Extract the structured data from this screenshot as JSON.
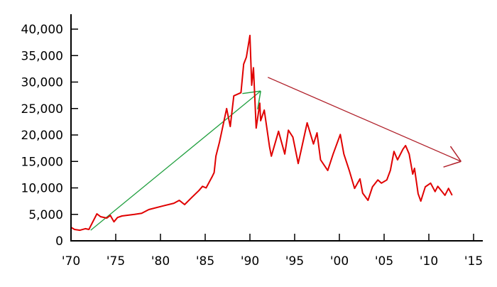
{
  "chart_data": {
    "type": "line",
    "title": "",
    "xlabel": "",
    "ylabel": "",
    "xlim": [
      1970,
      2015
    ],
    "ylim": [
      0,
      40000
    ],
    "grid": false,
    "x_ticks": [
      1970,
      1975,
      1980,
      1985,
      1990,
      1995,
      2000,
      2005,
      2010,
      2015
    ],
    "x_tick_labels": [
      "'70",
      "'75",
      "'80",
      "'85",
      "'90",
      "'95",
      "'00",
      "'05",
      "'10",
      "'15"
    ],
    "y_ticks": [
      0,
      5000,
      10000,
      15000,
      20000,
      25000,
      30000,
      35000,
      40000
    ],
    "y_tick_labels": [
      "0",
      "5,000",
      "10,000",
      "15,000",
      "20,000",
      "25,000",
      "30,000",
      "35,000",
      "40,000"
    ],
    "series": [
      {
        "color": "#e00000",
        "points": [
          [
            1970.0,
            2550
          ],
          [
            1970.4,
            2150
          ],
          [
            1971.0,
            2000
          ],
          [
            1971.6,
            2300
          ],
          [
            1972.0,
            2150
          ],
          [
            1972.9,
            5100
          ],
          [
            1973.3,
            4560
          ],
          [
            1974.0,
            4300
          ],
          [
            1974.4,
            4800
          ],
          [
            1974.8,
            3600
          ],
          [
            1975.2,
            4400
          ],
          [
            1975.7,
            4700
          ],
          [
            1977.1,
            5000
          ],
          [
            1977.9,
            5200
          ],
          [
            1978.7,
            5900
          ],
          [
            1980.3,
            6600
          ],
          [
            1981.5,
            7100
          ],
          [
            1982.1,
            7650
          ],
          [
            1982.7,
            6850
          ],
          [
            1983.5,
            8200
          ],
          [
            1984.3,
            9500
          ],
          [
            1984.7,
            10300
          ],
          [
            1985.1,
            10000
          ],
          [
            1985.8,
            12200
          ],
          [
            1986.0,
            12900
          ],
          [
            1986.2,
            16000
          ],
          [
            1986.6,
            18700
          ],
          [
            1987.4,
            25000
          ],
          [
            1987.8,
            21600
          ],
          [
            1988.2,
            27400
          ],
          [
            1989.0,
            28000
          ],
          [
            1989.3,
            33400
          ],
          [
            1989.6,
            34700
          ],
          [
            1990.0,
            38800
          ],
          [
            1990.2,
            29400
          ],
          [
            1990.4,
            32700
          ],
          [
            1990.7,
            21300
          ],
          [
            1991.1,
            26000
          ],
          [
            1991.2,
            22700
          ],
          [
            1991.6,
            24700
          ],
          [
            1992.2,
            17700
          ],
          [
            1992.4,
            16000
          ],
          [
            1993.2,
            20700
          ],
          [
            1993.9,
            16400
          ],
          [
            1994.3,
            20900
          ],
          [
            1994.8,
            19600
          ],
          [
            1995.4,
            14600
          ],
          [
            1995.8,
            17700
          ],
          [
            1996.4,
            22300
          ],
          [
            1997.1,
            18300
          ],
          [
            1997.5,
            20400
          ],
          [
            1997.9,
            15300
          ],
          [
            1998.7,
            13300
          ],
          [
            1999.3,
            16400
          ],
          [
            2000.1,
            20100
          ],
          [
            2000.5,
            16400
          ],
          [
            2001.1,
            13300
          ],
          [
            2001.7,
            9900
          ],
          [
            2002.3,
            11700
          ],
          [
            2002.6,
            9000
          ],
          [
            2003.2,
            7650
          ],
          [
            2003.7,
            10200
          ],
          [
            2004.3,
            11500
          ],
          [
            2004.7,
            10900
          ],
          [
            2005.3,
            11500
          ],
          [
            2005.7,
            13300
          ],
          [
            2006.1,
            16900
          ],
          [
            2006.5,
            15300
          ],
          [
            2007.1,
            17300
          ],
          [
            2007.4,
            18000
          ],
          [
            2007.8,
            16400
          ],
          [
            2008.2,
            12600
          ],
          [
            2008.4,
            13700
          ],
          [
            2008.8,
            8900
          ],
          [
            2009.1,
            7500
          ],
          [
            2009.6,
            10200
          ],
          [
            2010.2,
            10900
          ],
          [
            2010.7,
            9300
          ],
          [
            2011.0,
            10300
          ],
          [
            2011.8,
            8600
          ],
          [
            2012.2,
            9900
          ],
          [
            2012.6,
            8600
          ]
        ]
      }
    ],
    "annotations": [
      {
        "type": "arrow",
        "color": "#22a040",
        "from": [
          1972.2,
          2000
        ],
        "to": [
          1991.2,
          28300
        ]
      },
      {
        "type": "arrow",
        "color": "#b0202a",
        "from": [
          1992.0,
          30900
        ],
        "to": [
          2013.6,
          15000
        ]
      }
    ]
  }
}
